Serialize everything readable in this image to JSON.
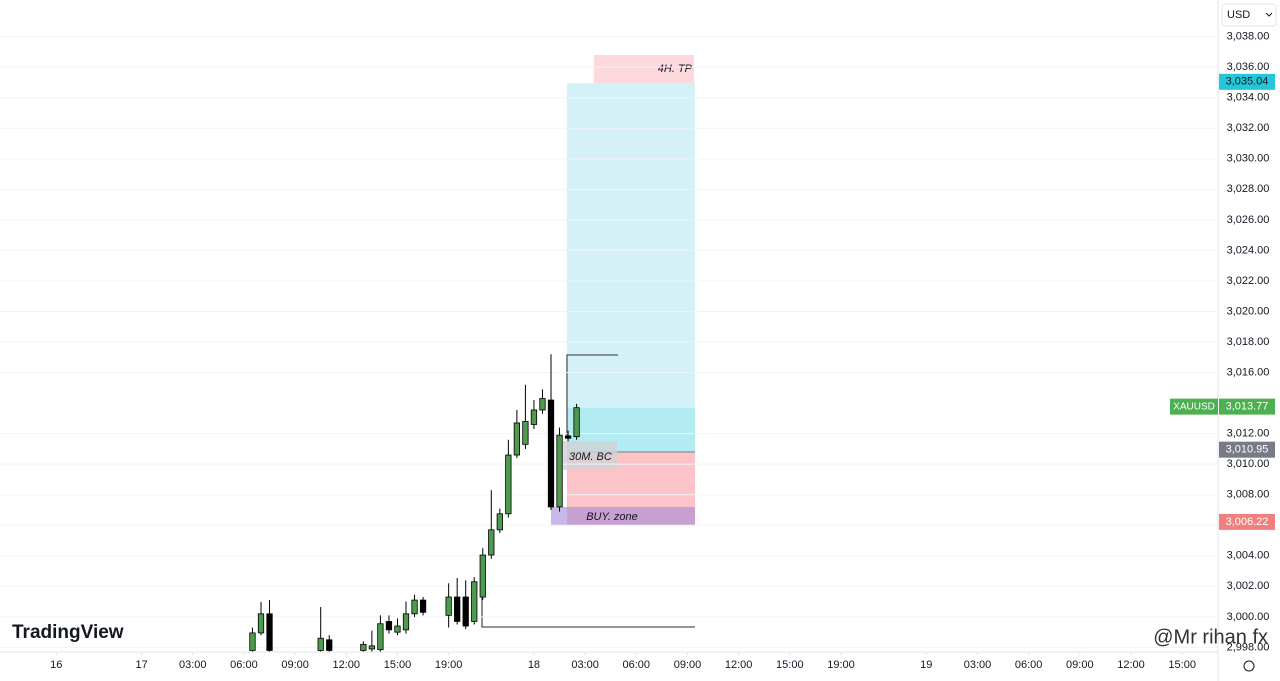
{
  "chart_data": {
    "type": "candlestick",
    "currency": "USD",
    "symbol": "XAUUSD",
    "watermark": "TradingView",
    "credit": "@Mr rihan fx",
    "annotations": [
      "4H. TP",
      "30M. BC",
      "BUY. zone"
    ],
    "up_color": "#4e9a4e",
    "down_color": "#000000",
    "x": [
      13,
      14,
      15,
      21,
      22,
      26,
      27,
      28,
      29,
      30,
      31,
      32,
      33,
      36,
      37,
      38,
      39,
      40,
      41,
      42,
      43,
      44,
      45,
      46,
      47,
      48,
      49,
      50,
      51
    ],
    "open": [
      2997.8,
      2998.95,
      3000.2,
      2997.8,
      2998.5,
      2997.8,
      2997.9,
      2997.85,
      2999.7,
      2999.0,
      2999.15,
      3000.2,
      3001.1,
      3000.1,
      3001.3,
      3001.3,
      2999.7,
      3001.3,
      3004.05,
      3005.7,
      3006.75,
      3010.6,
      3011.3,
      3012.6,
      3013.55,
      3014.2,
      3007.2,
      3011.85,
      3011.8
    ],
    "high": [
      2999.3,
      3000.98,
      3001.1,
      3000.65,
      2998.8,
      2998.4,
      2999.1,
      3000.1,
      3000.1,
      2999.9,
      3001.0,
      3001.45,
      3001.3,
      3002.2,
      3002.55,
      3002.4,
      3002.6,
      3004.5,
      3008.3,
      3007.1,
      3011.6,
      3013.55,
      3015.2,
      3014.2,
      3014.9,
      3017.2,
      3012.4,
      3012.2,
      3013.95
    ],
    "low": [
      2997.7,
      2998.8,
      2997.7,
      2997.7,
      2997.7,
      2997.7,
      2997.7,
      2997.7,
      2998.9,
      2998.8,
      2998.9,
      3000.0,
      3000.1,
      2999.3,
      2999.5,
      2999.2,
      2999.5,
      3001.1,
      3003.8,
      3005.5,
      3006.5,
      3010.4,
      3011.0,
      3012.3,
      3013.3,
      3007.0,
      3006.9,
      3011.5,
      3011.6
    ],
    "close": [
      2998.95,
      3000.2,
      2997.8,
      2998.6,
      2997.8,
      2998.2,
      2998.1,
      2999.55,
      2999.15,
      2999.4,
      3000.2,
      3001.1,
      3000.3,
      3001.3,
      2999.7,
      2999.4,
      3002.3,
      3004.05,
      3005.7,
      3006.75,
      3010.6,
      3012.7,
      3012.8,
      3013.55,
      3014.3,
      3007.2,
      3011.9,
      3011.7,
      3013.7
    ],
    "xlim": [
      -16.6,
      126.2
    ],
    "xticks": [
      {
        "value": -10,
        "label": "16"
      },
      {
        "value": 0,
        "label": "17"
      },
      {
        "value": 6,
        "label": "03:00"
      },
      {
        "value": 12,
        "label": "06:00"
      },
      {
        "value": 18,
        "label": "09:00"
      },
      {
        "value": 24,
        "label": "12:00"
      },
      {
        "value": 30,
        "label": "15:00"
      },
      {
        "value": 36,
        "label": "19:00"
      },
      {
        "value": 46,
        "label": "18"
      },
      {
        "value": 52,
        "label": "03:00"
      },
      {
        "value": 58,
        "label": "06:00"
      },
      {
        "value": 64,
        "label": "09:00"
      },
      {
        "value": 70,
        "label": "12:00"
      },
      {
        "value": 76,
        "label": "15:00"
      },
      {
        "value": 82,
        "label": "19:00"
      },
      {
        "value": 92,
        "label": "19"
      },
      {
        "value": 98,
        "label": "03:00"
      },
      {
        "value": 104,
        "label": "06:00"
      },
      {
        "value": 110,
        "label": "09:00"
      },
      {
        "value": 116,
        "label": "12:00"
      },
      {
        "value": 122,
        "label": "15:00"
      }
    ],
    "ylim": [
      2997.7,
      3040.4
    ],
    "yticks": [
      {
        "value": 2998,
        "label": "2,998.00"
      },
      {
        "value": 3000,
        "label": "3,000.00"
      },
      {
        "value": 3002,
        "label": "3,002.00"
      },
      {
        "value": 3004,
        "label": "3,004.00"
      },
      {
        "value": 3006,
        "label": "3,006.00"
      },
      {
        "value": 3008,
        "label": "3,008.00"
      },
      {
        "value": 3010,
        "label": "3,010.00"
      },
      {
        "value": 3012,
        "label": "3,012.00"
      },
      {
        "value": 3016,
        "label": "3,016.00"
      },
      {
        "value": 3018,
        "label": "3,018.00"
      },
      {
        "value": 3020,
        "label": "3,020.00"
      },
      {
        "value": 3022,
        "label": "3,022.00"
      },
      {
        "value": 3024,
        "label": "3,024.00"
      },
      {
        "value": 3026,
        "label": "3,026.00"
      },
      {
        "value": 3028,
        "label": "3,028.00"
      },
      {
        "value": 3030,
        "label": "3,030.00"
      },
      {
        "value": 3032,
        "label": "3,032.00"
      },
      {
        "value": 3034,
        "label": "3,034.00"
      },
      {
        "value": 3036,
        "label": "3,036.00"
      },
      {
        "value": 3038,
        "label": "3,038.00"
      }
    ],
    "price_badges": [
      {
        "value": 3035.04,
        "label": "3,035.04",
        "color": "#26c6da"
      },
      {
        "value": 3013.77,
        "label": "3,013.77",
        "color": "#4caf50"
      },
      {
        "value": 3010.95,
        "label": "3,010.95",
        "color": "#787b86"
      },
      {
        "value": 3006.22,
        "label": "3,006.22",
        "color": "#f07f7f"
      }
    ]
  }
}
